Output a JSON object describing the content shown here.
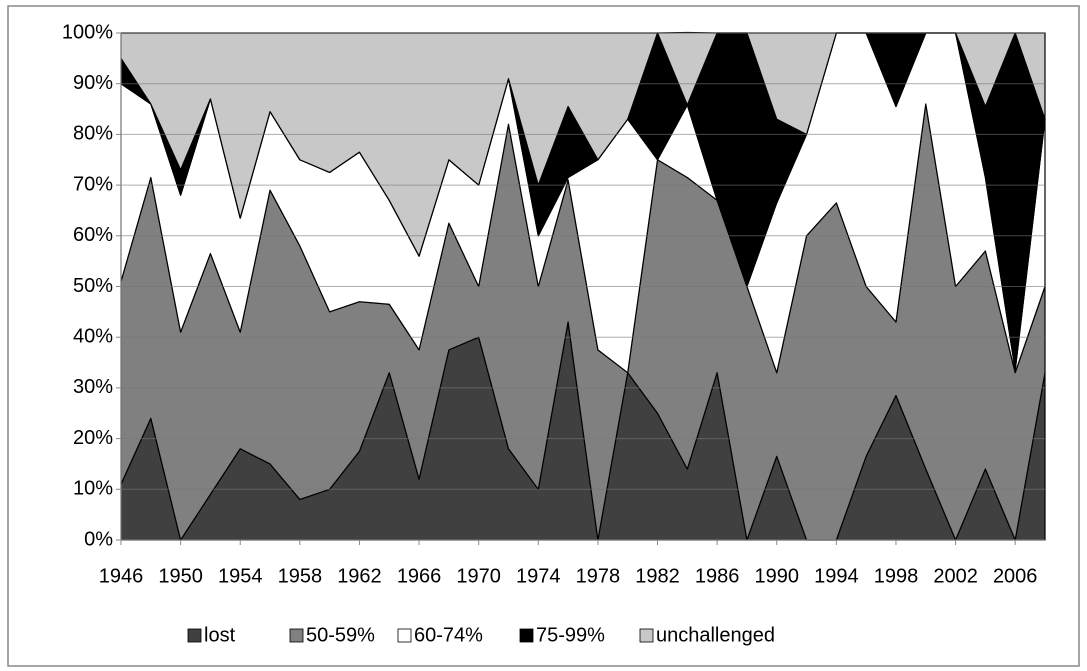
{
  "chart_data": {
    "type": "stacked_area",
    "x": [
      1946,
      1948,
      1950,
      1952,
      1954,
      1956,
      1958,
      1960,
      1962,
      1964,
      1966,
      1968,
      1970,
      1972,
      1974,
      1976,
      1978,
      1980,
      1982,
      1984,
      1986,
      1988,
      1990,
      1992,
      1994,
      1996,
      1998,
      2000,
      2002,
      2004,
      2006,
      2008
    ],
    "xlim": [
      1946,
      2008
    ],
    "xticks": [
      1946,
      1950,
      1954,
      1958,
      1962,
      1966,
      1970,
      1974,
      1978,
      1982,
      1986,
      1990,
      1994,
      1998,
      2002,
      2006
    ],
    "ylim": [
      0,
      100
    ],
    "yticks": [
      {
        "value": 0,
        "label": "0%"
      },
      {
        "value": 10,
        "label": "10%"
      },
      {
        "value": 20,
        "label": "20%"
      },
      {
        "value": 30,
        "label": "30%"
      },
      {
        "value": 40,
        "label": "40%"
      },
      {
        "value": 50,
        "label": "50%"
      },
      {
        "value": 60,
        "label": "60%"
      },
      {
        "value": 70,
        "label": "70%"
      },
      {
        "value": 80,
        "label": "80%"
      },
      {
        "value": 90,
        "label": "90%"
      },
      {
        "value": 100,
        "label": "100%"
      }
    ],
    "grid": true,
    "legend": "bottom",
    "series": [
      {
        "name": "lost",
        "color": "#404040",
        "values": [
          11,
          24,
          0,
          9,
          18,
          15,
          8,
          10,
          17.5,
          33,
          12,
          37.5,
          40,
          18,
          10,
          43,
          0,
          33,
          25,
          14,
          33,
          0,
          16.5,
          0,
          0,
          16.5,
          28.5,
          14,
          0,
          14,
          0,
          33
        ]
      },
      {
        "name": "50-59%",
        "color": "#808080",
        "values": [
          40,
          47.5,
          41,
          47.5,
          23,
          54,
          50,
          35,
          29.5,
          13.5,
          25.5,
          25,
          10,
          64,
          40,
          28,
          37.5,
          0,
          50,
          57.5,
          34,
          50,
          16.5,
          60,
          66.5,
          33.5,
          14.5,
          72,
          50,
          43,
          33,
          17
        ]
      },
      {
        "name": "60-74%",
        "color": "#ffffff",
        "values": [
          39,
          14.5,
          27,
          30.5,
          22.5,
          15.5,
          17,
          27.5,
          29.5,
          20.5,
          18.5,
          12.5,
          20,
          9,
          10,
          0.5,
          37.5,
          50,
          0,
          14.3,
          0,
          0,
          33.5,
          20,
          33.5,
          50,
          42.5,
          14,
          50,
          14.5,
          0.5,
          33
        ]
      },
      {
        "name": "75-99%",
        "color": "#000000",
        "values": [
          5,
          0,
          5,
          0,
          0,
          0,
          0,
          0,
          0,
          0,
          0,
          0,
          0,
          0,
          10,
          14,
          0,
          0,
          25,
          0,
          33,
          50,
          16.5,
          0,
          0,
          0,
          14.5,
          0,
          0,
          14,
          66.5,
          0
        ]
      },
      {
        "name": "unchallenged",
        "color": "#c8c8c8",
        "values": [
          5,
          14,
          27,
          13,
          36.5,
          15.5,
          25,
          27.5,
          23.5,
          33,
          44,
          25,
          30,
          9,
          30,
          14.5,
          25,
          17,
          0,
          14.3,
          0,
          0,
          17,
          20,
          0,
          0,
          0,
          0,
          0,
          14.5,
          0,
          17
        ]
      }
    ]
  }
}
